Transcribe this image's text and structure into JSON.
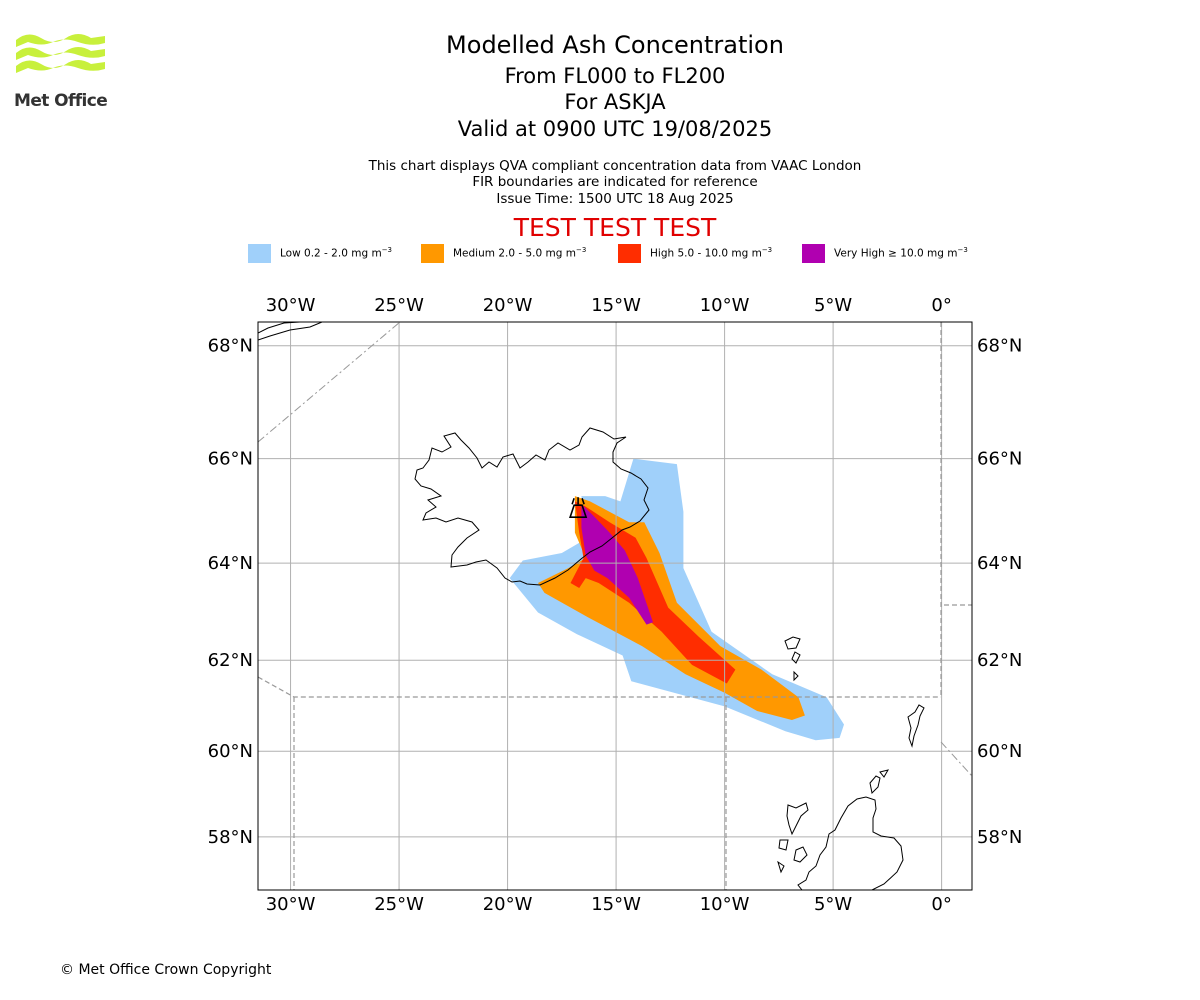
{
  "logo": {
    "text": "Met Office",
    "brand_color": "#c8f03c"
  },
  "header": {
    "title": "Modelled Ash Concentration",
    "levels": "From FL000 to FL200",
    "volcano": "For ASKJA",
    "valid": "Valid at 0900 UTC 19/08/2025",
    "note1": "This chart displays QVA compliant concentration data from VAAC London",
    "note2": "FIR boundaries are indicated for reference",
    "issue": "Issue Time: 1500 UTC 18 Aug 2025",
    "test_banner": "TEST TEST TEST"
  },
  "legend": [
    {
      "label": "Low 0.2 - 2.0 mg m",
      "unit_exp": "−3",
      "color": "#a0d0fa"
    },
    {
      "label": "Medium 2.0 - 5.0 mg m",
      "unit_exp": "−3",
      "color": "#ff9800"
    },
    {
      "label": "High 5.0 - 10.0 mg m",
      "unit_exp": "−3",
      "color": "#ff2d00"
    },
    {
      "label": "Very High  ≥  10.0 mg m",
      "unit_exp": "−3",
      "color": "#b000b0"
    }
  ],
  "map": {
    "projection": "Mercator",
    "lon_range": [
      -31.5,
      1.4
    ],
    "lat_range": [
      56.7,
      68.4
    ],
    "lon_ticks": [
      {
        "value": -30,
        "label": "30°W"
      },
      {
        "value": -25,
        "label": "25°W"
      },
      {
        "value": -20,
        "label": "20°W"
      },
      {
        "value": -15,
        "label": "15°W"
      },
      {
        "value": -10,
        "label": "10°W"
      },
      {
        "value": -5,
        "label": "5°W"
      },
      {
        "value": 0,
        "label": "0°"
      }
    ],
    "lat_ticks": [
      {
        "value": 68,
        "label": "68°N"
      },
      {
        "value": 66,
        "label": "66°N"
      },
      {
        "value": 64,
        "label": "64°N"
      },
      {
        "value": 62,
        "label": "62°N"
      },
      {
        "value": 60,
        "label": "60°N"
      },
      {
        "value": 58,
        "label": "58°N"
      }
    ],
    "volcano_location": {
      "lon": -16.75,
      "lat": 65.05
    },
    "ash_zones": [
      {
        "level": "Low",
        "color": "#a0d0fa",
        "polygon": [
          [
            -14.2,
            66.0
          ],
          [
            -12.2,
            65.9
          ],
          [
            -11.9,
            65.0
          ],
          [
            -11.9,
            63.9
          ],
          [
            -10.6,
            62.6
          ],
          [
            -7.8,
            61.7
          ],
          [
            -5.3,
            61.2
          ],
          [
            -4.5,
            60.6
          ],
          [
            -4.7,
            60.3
          ],
          [
            -5.8,
            60.25
          ],
          [
            -7.2,
            60.45
          ],
          [
            -10.0,
            61.0
          ],
          [
            -14.3,
            61.55
          ],
          [
            -14.7,
            62.1
          ],
          [
            -16.8,
            62.55
          ],
          [
            -18.6,
            63.0
          ],
          [
            -19.9,
            63.7
          ],
          [
            -19.3,
            64.05
          ],
          [
            -17.5,
            64.2
          ],
          [
            -16.3,
            64.5
          ],
          [
            -16.6,
            65.3
          ],
          [
            -15.5,
            65.3
          ],
          [
            -14.8,
            65.2
          ]
        ]
      },
      {
        "level": "Medium",
        "color": "#ff9800",
        "polygon": [
          [
            -16.9,
            65.3
          ],
          [
            -16.2,
            65.2
          ],
          [
            -14.4,
            64.8
          ],
          [
            -13.7,
            64.8
          ],
          [
            -13.0,
            64.2
          ],
          [
            -12.2,
            63.2
          ],
          [
            -10.2,
            62.3
          ],
          [
            -8.3,
            61.8
          ],
          [
            -6.6,
            61.2
          ],
          [
            -6.3,
            60.8
          ],
          [
            -6.9,
            60.7
          ],
          [
            -8.5,
            60.9
          ],
          [
            -10.0,
            61.3
          ],
          [
            -11.8,
            61.7
          ],
          [
            -13.8,
            62.3
          ],
          [
            -16.3,
            62.9
          ],
          [
            -18.3,
            63.4
          ],
          [
            -18.6,
            63.6
          ],
          [
            -17.2,
            63.9
          ],
          [
            -16.4,
            64.1
          ],
          [
            -16.9,
            64.6
          ],
          [
            -16.9,
            65.1
          ]
        ]
      },
      {
        "level": "High",
        "color": "#ff2d00",
        "polygon": [
          [
            -16.9,
            65.2
          ],
          [
            -16.4,
            65.1
          ],
          [
            -15.3,
            64.8
          ],
          [
            -14.1,
            64.5
          ],
          [
            -13.6,
            64.1
          ],
          [
            -12.6,
            63.1
          ],
          [
            -11.2,
            62.5
          ],
          [
            -9.5,
            61.8
          ],
          [
            -9.9,
            61.5
          ],
          [
            -11.5,
            61.9
          ],
          [
            -12.9,
            62.6
          ],
          [
            -14.4,
            63.2
          ],
          [
            -15.8,
            63.6
          ],
          [
            -16.4,
            63.7
          ],
          [
            -16.7,
            63.5
          ],
          [
            -17.1,
            63.6
          ],
          [
            -16.5,
            64.1
          ],
          [
            -16.7,
            64.6
          ]
        ]
      },
      {
        "level": "Very High",
        "color": "#b000b0",
        "polygon": [
          [
            -16.6,
            65.15
          ],
          [
            -16.1,
            64.95
          ],
          [
            -15.3,
            64.6
          ],
          [
            -14.6,
            64.25
          ],
          [
            -14.0,
            63.7
          ],
          [
            -13.3,
            62.8
          ],
          [
            -13.6,
            62.75
          ],
          [
            -14.4,
            63.3
          ],
          [
            -15.4,
            63.7
          ],
          [
            -16.0,
            63.85
          ],
          [
            -16.4,
            64.15
          ],
          [
            -16.6,
            64.7
          ]
        ]
      }
    ]
  },
  "footer": {
    "copyright": "© Met Office Crown Copyright"
  }
}
